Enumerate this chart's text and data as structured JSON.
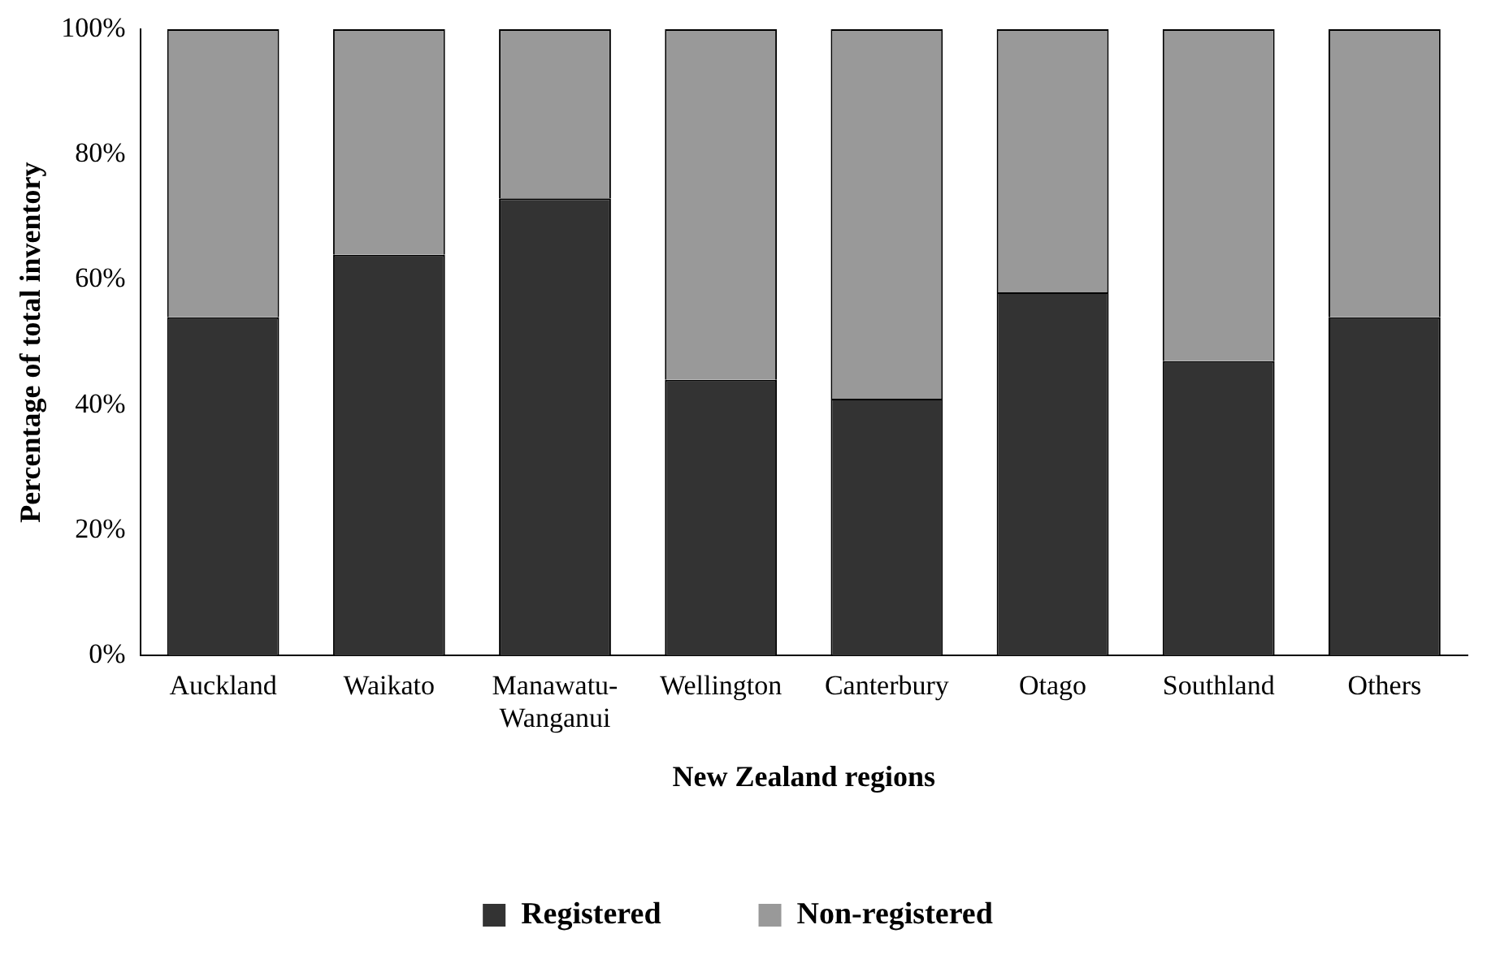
{
  "chart_data": {
    "type": "bar",
    "stacked": true,
    "xlabel": "New Zealand regions",
    "ylabel": "Percentage of total inventory",
    "categories": [
      "Auckland",
      "Waikato",
      "Manawatu-Wanganui",
      "Wellington",
      "Canterbury",
      "Otago",
      "Southland",
      "Others"
    ],
    "series": [
      {
        "name": "Registered",
        "color": "#333333",
        "values": [
          54,
          64,
          73,
          44,
          41,
          58,
          47,
          54
        ]
      },
      {
        "name": "Non-registered",
        "color": "#999999",
        "values": [
          46,
          36,
          27,
          56,
          59,
          42,
          53,
          46
        ]
      }
    ],
    "ylim": [
      0,
      100
    ],
    "yticks": [
      {
        "value": 0,
        "label": "0%"
      },
      {
        "value": 20,
        "label": "20%"
      },
      {
        "value": 40,
        "label": "40%"
      },
      {
        "value": 60,
        "label": "60%"
      },
      {
        "value": 80,
        "label": "80%"
      },
      {
        "value": 100,
        "label": "100%"
      }
    ],
    "grid": false,
    "legend": "bottom"
  }
}
